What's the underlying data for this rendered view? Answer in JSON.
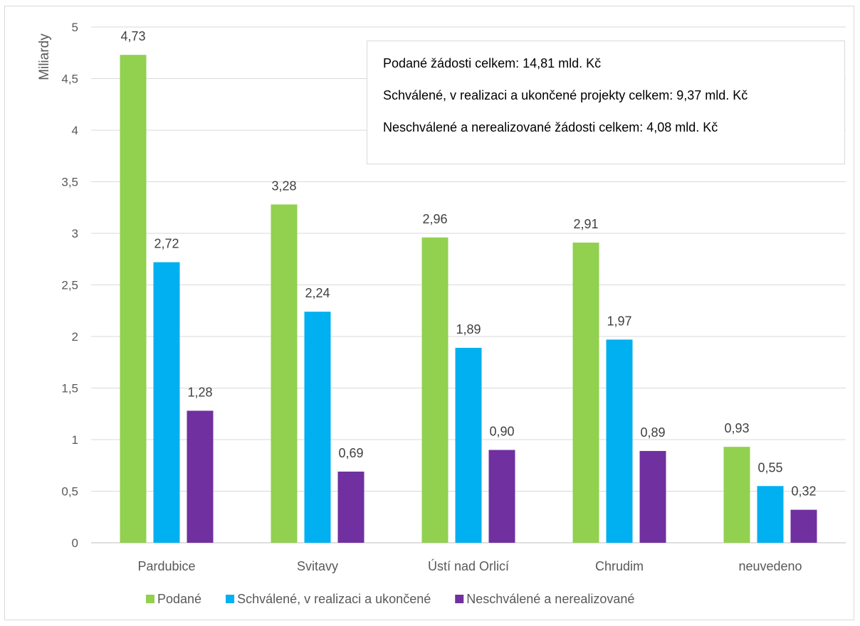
{
  "chart_data": {
    "type": "bar",
    "ylabel": "Miliardy",
    "ylim": [
      0,
      5
    ],
    "yticks": [
      "0",
      "0,5",
      "1",
      "1,5",
      "2",
      "2,5",
      "3",
      "3,5",
      "4",
      "4,5",
      "5"
    ],
    "grid": true,
    "legend_position": "bottom",
    "categories": [
      "Pardubice",
      "Svitavy",
      "Ústí nad Orlicí",
      "Chrudim",
      "neuvedeno"
    ],
    "series": [
      {
        "name": "Podané",
        "color": "#92d050",
        "values": [
          4.73,
          3.28,
          2.96,
          2.91,
          0.93
        ],
        "labels": [
          "4,73",
          "3,28",
          "2,96",
          "2,91",
          "0,93"
        ]
      },
      {
        "name": "Schválené, v realizaci a ukončené",
        "color": "#00b0f0",
        "values": [
          2.72,
          2.24,
          1.89,
          1.97,
          0.55
        ],
        "labels": [
          "2,72",
          "2,24",
          "1,89",
          "1,97",
          "0,55"
        ]
      },
      {
        "name": "Neschválené a nerealizované",
        "color": "#7030a0",
        "values": [
          1.28,
          0.69,
          0.9,
          0.89,
          0.32
        ],
        "labels": [
          "1,28",
          "0,69",
          "0,90",
          "0,89",
          "0,32"
        ]
      }
    ],
    "annotations": [
      "Podané žádosti celkem: 14,81 mld. Kč",
      "Schválené, v realizaci a ukončené projekty celkem: 9,37 mld. Kč",
      "Neschválené a nerealizované žádosti celkem: 4,08 mld. Kč"
    ]
  }
}
